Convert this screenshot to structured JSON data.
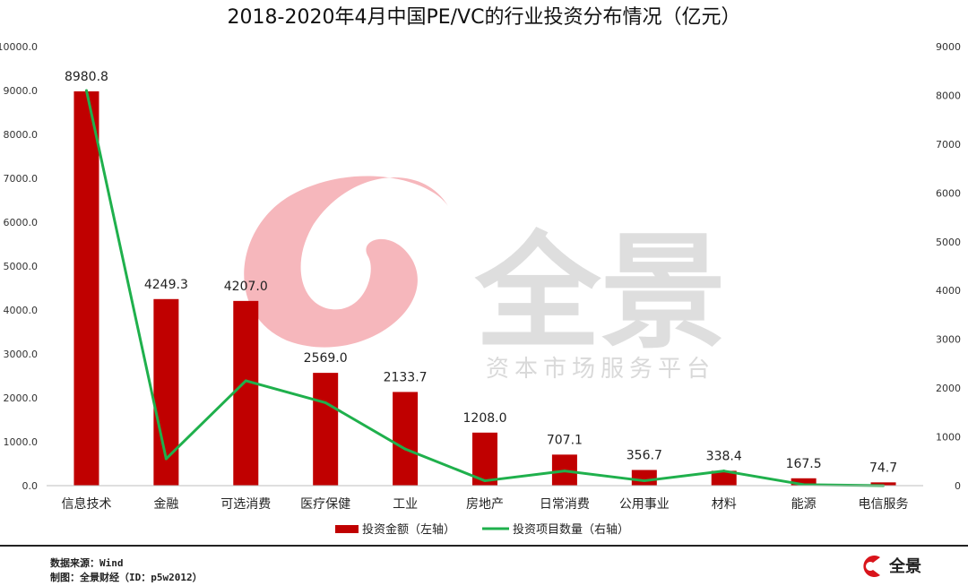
{
  "chart_data": {
    "type": "bar",
    "title": "2018-2020年4月中国PE/VC的行业投资分布情况（亿元）",
    "categories": [
      "信息技术",
      "金融",
      "可选消费",
      "医疗保健",
      "工业",
      "房地产",
      "日常消费",
      "公用事业",
      "材料",
      "能源",
      "电信服务"
    ],
    "series": [
      {
        "name": "投资金额（左轴）",
        "type": "bar",
        "axis": "left",
        "color": "#c00000",
        "values": [
          8980.8,
          4249.3,
          4207.0,
          2569.0,
          2133.7,
          1208.0,
          707.1,
          356.7,
          338.4,
          167.5,
          74.7
        ],
        "labels": [
          "8980.8",
          "4249.3",
          "4207.0",
          "2569.0",
          "2133.7",
          "1208.0",
          "707.1",
          "356.7",
          "338.4",
          "167.5",
          "74.7"
        ]
      },
      {
        "name": "投资项目数量（右轴）",
        "type": "line",
        "axis": "right",
        "color": "#1fb04c",
        "values": [
          8100,
          550,
          2150,
          1700,
          750,
          100,
          300,
          100,
          300,
          20,
          0
        ]
      }
    ],
    "y_left": {
      "range": [
        0,
        10000
      ],
      "ticks": [
        "0.0",
        "1000.0",
        "2000.0",
        "3000.0",
        "4000.0",
        "5000.0",
        "6000.0",
        "7000.0",
        "8000.0",
        "9000.0",
        "10000.0"
      ]
    },
    "y_right": {
      "range": [
        0,
        9000
      ],
      "ticks": [
        "0",
        "1000",
        "2000",
        "3000",
        "4000",
        "5000",
        "6000",
        "7000",
        "8000",
        "9000"
      ]
    },
    "grid": false,
    "legend": "bottom"
  },
  "watermark": {
    "brand": "全景",
    "tagline": "资本市场服务平台",
    "logo_color": "#f4aab0",
    "text_color": "#d9d9d9"
  },
  "footer": {
    "source": "数据来源：Wind",
    "maker": "制图：全景财经（ID：p5w2012）",
    "logo_text": "全景",
    "logo_color": "#d9141b"
  }
}
